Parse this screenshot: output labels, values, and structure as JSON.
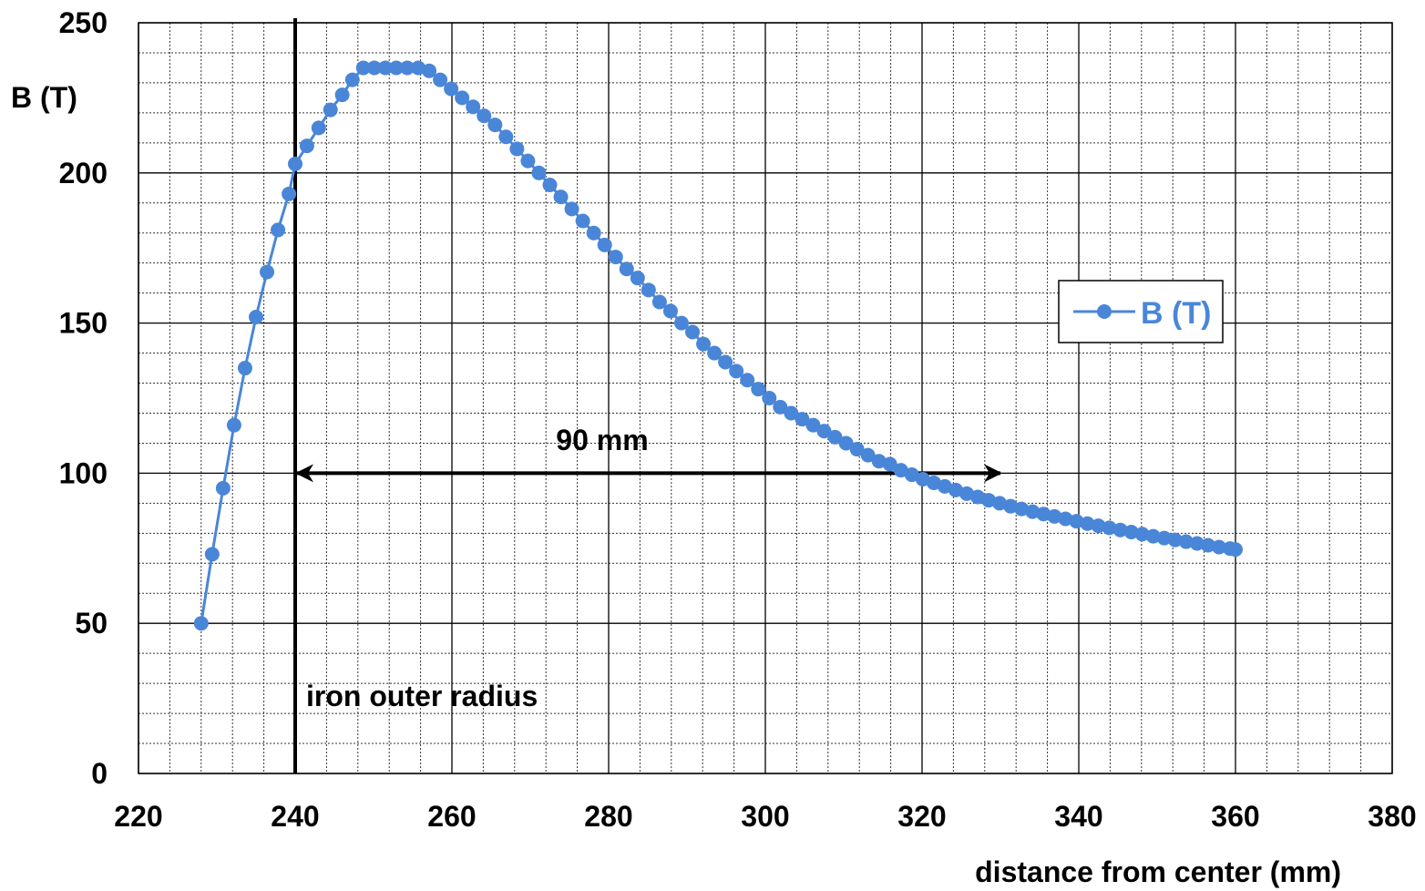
{
  "chart_data": {
    "type": "line",
    "xlabel": "distance from center (mm)",
    "ylabel": "B (T)",
    "xlim": [
      220,
      380
    ],
    "ylim": [
      0,
      250
    ],
    "x_ticks": [
      "220",
      "240",
      "260",
      "280",
      "300",
      "320",
      "340",
      "360",
      "380"
    ],
    "y_ticks": [
      "0",
      "50",
      "100",
      "150",
      "200",
      "250"
    ],
    "grid": true,
    "legend": {
      "position": "right",
      "entries": [
        "B (T)"
      ]
    },
    "series": [
      {
        "name": "B (T)",
        "color": "#4A86D8",
        "marker": "circle",
        "x": [
          228,
          229.4,
          230.8,
          232.2,
          233.6,
          235,
          236.4,
          237.8,
          239.2,
          240,
          241.5,
          243,
          244.5,
          246,
          247.3,
          248.7,
          250.1,
          251.5,
          252.9,
          254.3,
          255.7,
          257.1,
          258.5,
          259.9,
          261.3,
          262.7,
          264.1,
          265.5,
          266.9,
          268.3,
          269.7,
          271.1,
          272.5,
          273.9,
          275.3,
          276.7,
          278.1,
          279.5,
          280.9,
          282.3,
          283.7,
          285.1,
          286.5,
          287.9,
          289.3,
          290.7,
          292.1,
          293.5,
          294.9,
          296.3,
          297.7,
          299.1,
          300.5,
          301.9,
          303.3,
          304.7,
          306.1,
          307.5,
          308.9,
          310.3,
          311.7,
          313.1,
          314.5,
          315.9,
          317.3,
          318.7,
          320.1,
          321.5,
          322.9,
          324.3,
          325.7,
          327.1,
          328.5,
          329.9,
          331.3,
          332.7,
          334.1,
          335.5,
          336.9,
          338.3,
          339.7,
          341.1,
          342.5,
          343.9,
          345.3,
          346.7,
          348.1,
          349.5,
          350.9,
          352.3,
          353.7,
          355.1,
          356.5,
          357.9,
          359.3,
          360
        ],
        "y": [
          50,
          73,
          95,
          116,
          135,
          152,
          167,
          181,
          193,
          203,
          209,
          215,
          221,
          226,
          231,
          235,
          235,
          235,
          235,
          235,
          235,
          234,
          231,
          228,
          225,
          222,
          219,
          216,
          212,
          208,
          204,
          200,
          196,
          192,
          188,
          184,
          180,
          176,
          172,
          168,
          165,
          161,
          157,
          154,
          150,
          147,
          143,
          140,
          137,
          134,
          131,
          128,
          125,
          122,
          120,
          118,
          116,
          114,
          112,
          110,
          108,
          106,
          104,
          103,
          101,
          99.5,
          98,
          96.8,
          95.6,
          94.4,
          93.2,
          92.1,
          91,
          90,
          89,
          88.1,
          87.2,
          86.4,
          85.6,
          84.8,
          84,
          83.2,
          82.5,
          81.8,
          81.1,
          80.4,
          79.7,
          79,
          78.4,
          77.8,
          77.2,
          76.6,
          76,
          75.4,
          74.9,
          74.6
        ]
      }
    ],
    "annotations": [
      {
        "text": "iron outer radius",
        "x": 240,
        "kind": "vertical-line"
      },
      {
        "text": "90 mm",
        "x_from": 240,
        "x_to": 330,
        "y": 100,
        "kind": "double-arrow"
      }
    ]
  }
}
